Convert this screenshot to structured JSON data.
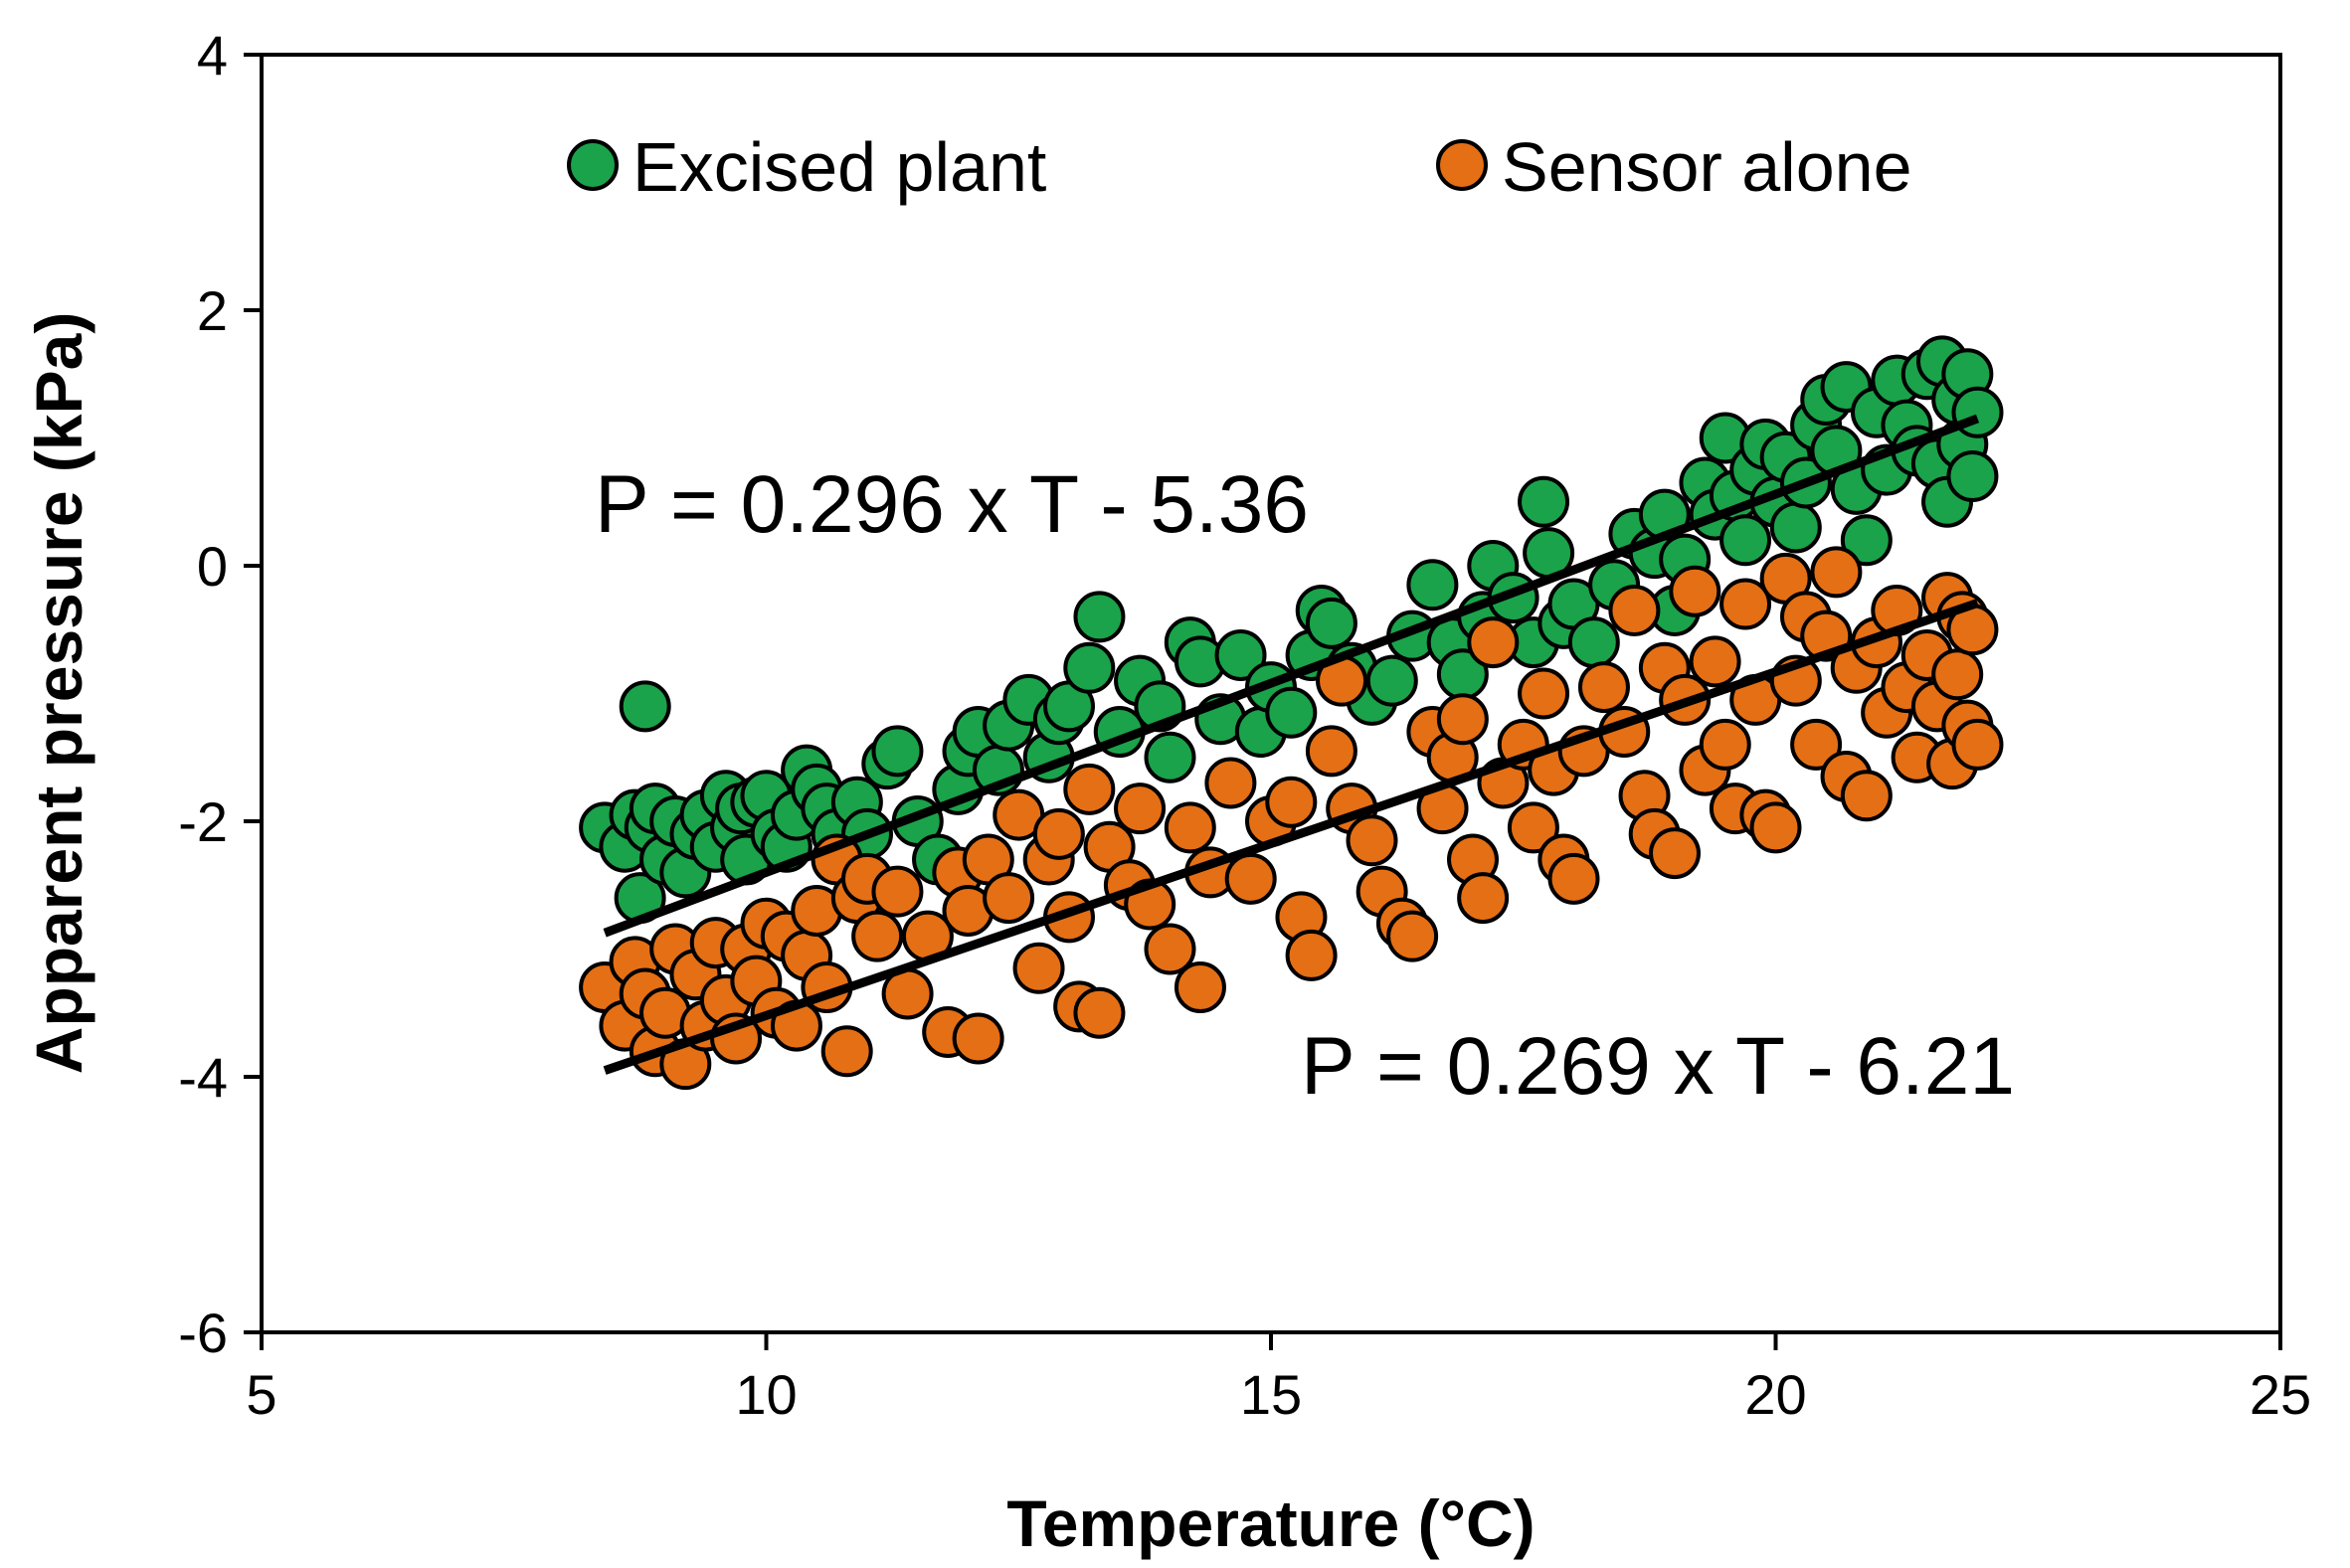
{
  "chart_data": {
    "type": "scatter",
    "title": "",
    "xlabel": "Temperature (°C)",
    "ylabel": "Apparent pressure (kPa)",
    "xlim": [
      5,
      25
    ],
    "ylim": [
      -6,
      4
    ],
    "xticks": [
      5,
      10,
      15,
      20,
      25
    ],
    "yticks": [
      4,
      2,
      0,
      -2,
      -4,
      -6
    ],
    "xtick_labels": [
      "5",
      "10",
      "15",
      "20",
      "25"
    ],
    "ytick_labels": [
      "4",
      "2",
      "0",
      "-2",
      "-4",
      "-6"
    ],
    "grid": false,
    "legend_placement": "top",
    "series": [
      {
        "name": "Excised plant",
        "color": "#1aa34a",
        "fit": {
          "slope": 0.296,
          "intercept": -5.36,
          "x_range": [
            8.4,
            22.0
          ],
          "label": "P = 0.296 x T - 5.36"
        },
        "points": [
          [
            8.4,
            -2.05
          ],
          [
            8.6,
            -2.2
          ],
          [
            8.7,
            -1.95
          ],
          [
            8.75,
            -2.6
          ],
          [
            8.8,
            -1.1
          ],
          [
            8.85,
            -2.05
          ],
          [
            8.9,
            -1.9
          ],
          [
            9.0,
            -2.3
          ],
          [
            9.1,
            -2.0
          ],
          [
            9.2,
            -2.4
          ],
          [
            9.3,
            -2.1
          ],
          [
            9.4,
            -1.95
          ],
          [
            9.5,
            -2.2
          ],
          [
            9.6,
            -1.8
          ],
          [
            9.7,
            -2.05
          ],
          [
            9.75,
            -1.9
          ],
          [
            9.8,
            -2.3
          ],
          [
            9.9,
            -1.85
          ],
          [
            10.0,
            -1.8
          ],
          [
            10.1,
            -2.1
          ],
          [
            10.2,
            -2.2
          ],
          [
            10.3,
            -1.95
          ],
          [
            10.4,
            -1.6
          ],
          [
            10.5,
            -1.75
          ],
          [
            10.6,
            -1.9
          ],
          [
            10.7,
            -2.1
          ],
          [
            10.9,
            -1.85
          ],
          [
            11.0,
            -2.1
          ],
          [
            11.2,
            -1.55
          ],
          [
            11.3,
            -1.45
          ],
          [
            11.5,
            -2.0
          ],
          [
            11.7,
            -2.3
          ],
          [
            11.9,
            -1.75
          ],
          [
            12.0,
            -1.45
          ],
          [
            12.1,
            -1.3
          ],
          [
            12.3,
            -1.6
          ],
          [
            12.4,
            -1.25
          ],
          [
            12.6,
            -1.05
          ],
          [
            12.8,
            -1.5
          ],
          [
            12.9,
            -1.2
          ],
          [
            13.0,
            -1.1
          ],
          [
            13.2,
            -0.8
          ],
          [
            13.3,
            -0.4
          ],
          [
            13.5,
            -1.3
          ],
          [
            13.7,
            -0.9
          ],
          [
            13.9,
            -1.1
          ],
          [
            14.0,
            -1.5
          ],
          [
            14.2,
            -0.6
          ],
          [
            14.3,
            -0.75
          ],
          [
            14.5,
            -1.2
          ],
          [
            14.7,
            -0.7
          ],
          [
            14.9,
            -1.3
          ],
          [
            15.0,
            -0.95
          ],
          [
            15.2,
            -1.15
          ],
          [
            15.4,
            -0.7
          ],
          [
            15.5,
            -0.35
          ],
          [
            15.6,
            -0.45
          ],
          [
            15.8,
            -0.8
          ],
          [
            16.0,
            -1.05
          ],
          [
            16.2,
            -0.9
          ],
          [
            16.4,
            -0.55
          ],
          [
            16.6,
            -0.15
          ],
          [
            16.8,
            -0.6
          ],
          [
            16.9,
            -0.85
          ],
          [
            17.1,
            -0.4
          ],
          [
            17.2,
            0.0
          ],
          [
            17.4,
            -0.25
          ],
          [
            17.6,
            -0.6
          ],
          [
            17.7,
            0.5
          ],
          [
            17.75,
            0.1
          ],
          [
            17.9,
            -0.45
          ],
          [
            18.0,
            -0.3
          ],
          [
            18.2,
            -0.6
          ],
          [
            18.4,
            -0.15
          ],
          [
            18.6,
            0.25
          ],
          [
            18.8,
            0.1
          ],
          [
            18.9,
            0.4
          ],
          [
            19.0,
            -0.35
          ],
          [
            19.1,
            0.05
          ],
          [
            19.3,
            0.65
          ],
          [
            19.4,
            0.4
          ],
          [
            19.5,
            1.0
          ],
          [
            19.6,
            0.55
          ],
          [
            19.7,
            0.2
          ],
          [
            19.8,
            0.75
          ],
          [
            19.9,
            0.95
          ],
          [
            20.0,
            0.5
          ],
          [
            20.1,
            0.85
          ],
          [
            20.2,
            0.3
          ],
          [
            20.3,
            0.65
          ],
          [
            20.4,
            1.1
          ],
          [
            20.5,
            1.3
          ],
          [
            20.6,
            0.9
          ],
          [
            20.7,
            1.4
          ],
          [
            20.8,
            0.6
          ],
          [
            20.9,
            0.2
          ],
          [
            21.0,
            1.2
          ],
          [
            21.1,
            0.75
          ],
          [
            21.2,
            1.45
          ],
          [
            21.3,
            1.1
          ],
          [
            21.4,
            0.9
          ],
          [
            21.5,
            1.5
          ],
          [
            21.6,
            0.8
          ],
          [
            21.65,
            1.6
          ],
          [
            21.7,
            0.5
          ],
          [
            21.8,
            1.3
          ],
          [
            21.85,
            0.95
          ],
          [
            21.9,
            1.5
          ],
          [
            21.95,
            0.7
          ],
          [
            22.0,
            1.2
          ]
        ]
      },
      {
        "name": "Sensor alone",
        "color": "#e56f14",
        "fit": {
          "slope": 0.269,
          "intercept": -6.21,
          "x_range": [
            8.4,
            22.0
          ],
          "label": "P = 0.269 x T - 6.21"
        },
        "points": [
          [
            8.4,
            -3.3
          ],
          [
            8.6,
            -3.6
          ],
          [
            8.7,
            -3.1
          ],
          [
            8.8,
            -3.35
          ],
          [
            8.9,
            -3.8
          ],
          [
            9.0,
            -3.5
          ],
          [
            9.1,
            -3.0
          ],
          [
            9.2,
            -3.9
          ],
          [
            9.3,
            -3.2
          ],
          [
            9.4,
            -3.6
          ],
          [
            9.5,
            -2.95
          ],
          [
            9.6,
            -3.4
          ],
          [
            9.7,
            -3.7
          ],
          [
            9.8,
            -3.0
          ],
          [
            9.9,
            -3.25
          ],
          [
            10.0,
            -2.8
          ],
          [
            10.1,
            -3.5
          ],
          [
            10.2,
            -2.9
          ],
          [
            10.3,
            -3.6
          ],
          [
            10.4,
            -3.05
          ],
          [
            10.5,
            -2.7
          ],
          [
            10.6,
            -3.3
          ],
          [
            10.7,
            -2.3
          ],
          [
            10.8,
            -3.8
          ],
          [
            10.9,
            -2.6
          ],
          [
            11.0,
            -2.45
          ],
          [
            11.1,
            -2.9
          ],
          [
            11.3,
            -2.55
          ],
          [
            11.4,
            -3.35
          ],
          [
            11.6,
            -2.9
          ],
          [
            11.8,
            -3.65
          ],
          [
            11.9,
            -2.4
          ],
          [
            12.0,
            -2.7
          ],
          [
            12.1,
            -3.7
          ],
          [
            12.2,
            -2.3
          ],
          [
            12.4,
            -2.6
          ],
          [
            12.5,
            -1.95
          ],
          [
            12.7,
            -3.15
          ],
          [
            12.8,
            -2.3
          ],
          [
            12.9,
            -2.1
          ],
          [
            13.0,
            -2.75
          ],
          [
            13.1,
            -3.45
          ],
          [
            13.2,
            -1.75
          ],
          [
            13.3,
            -3.5
          ],
          [
            13.4,
            -2.2
          ],
          [
            13.6,
            -2.5
          ],
          [
            13.7,
            -1.9
          ],
          [
            13.8,
            -2.65
          ],
          [
            14.0,
            -3.0
          ],
          [
            14.2,
            -2.05
          ],
          [
            14.3,
            -3.3
          ],
          [
            14.4,
            -2.4
          ],
          [
            14.6,
            -1.7
          ],
          [
            14.8,
            -2.45
          ],
          [
            15.0,
            -2.0
          ],
          [
            15.2,
            -1.85
          ],
          [
            15.3,
            -2.75
          ],
          [
            15.4,
            -3.05
          ],
          [
            15.6,
            -1.45
          ],
          [
            15.7,
            -0.9
          ],
          [
            15.8,
            -1.9
          ],
          [
            16.0,
            -2.15
          ],
          [
            16.1,
            -2.55
          ],
          [
            16.3,
            -2.8
          ],
          [
            16.4,
            -2.9
          ],
          [
            16.6,
            -1.3
          ],
          [
            16.7,
            -1.9
          ],
          [
            16.8,
            -1.5
          ],
          [
            16.9,
            -1.2
          ],
          [
            17.0,
            -2.3
          ],
          [
            17.1,
            -2.6
          ],
          [
            17.2,
            -0.6
          ],
          [
            17.3,
            -1.7
          ],
          [
            17.5,
            -1.4
          ],
          [
            17.6,
            -2.05
          ],
          [
            17.7,
            -1.0
          ],
          [
            17.8,
            -1.6
          ],
          [
            17.9,
            -2.3
          ],
          [
            18.0,
            -2.45
          ],
          [
            18.1,
            -1.45
          ],
          [
            18.3,
            -0.95
          ],
          [
            18.5,
            -1.3
          ],
          [
            18.6,
            -0.35
          ],
          [
            18.7,
            -1.8
          ],
          [
            18.8,
            -2.1
          ],
          [
            18.9,
            -0.8
          ],
          [
            19.0,
            -2.25
          ],
          [
            19.1,
            -1.05
          ],
          [
            19.2,
            -0.2
          ],
          [
            19.3,
            -1.6
          ],
          [
            19.4,
            -0.75
          ],
          [
            19.5,
            -1.4
          ],
          [
            19.6,
            -1.9
          ],
          [
            19.7,
            -0.3
          ],
          [
            19.8,
            -1.05
          ],
          [
            19.9,
            -1.95
          ],
          [
            20.0,
            -2.05
          ],
          [
            20.1,
            -0.1
          ],
          [
            20.2,
            -0.9
          ],
          [
            20.3,
            -0.4
          ],
          [
            20.4,
            -1.4
          ],
          [
            20.5,
            -0.55
          ],
          [
            20.6,
            -0.05
          ],
          [
            20.7,
            -1.65
          ],
          [
            20.8,
            -0.8
          ],
          [
            20.9,
            -1.8
          ],
          [
            21.0,
            -0.6
          ],
          [
            21.1,
            -1.15
          ],
          [
            21.2,
            -0.35
          ],
          [
            21.3,
            -0.95
          ],
          [
            21.4,
            -1.5
          ],
          [
            21.5,
            -0.7
          ],
          [
            21.6,
            -1.1
          ],
          [
            21.7,
            -0.25
          ],
          [
            21.75,
            -1.55
          ],
          [
            21.8,
            -0.85
          ],
          [
            21.85,
            -0.4
          ],
          [
            21.9,
            -1.25
          ],
          [
            21.95,
            -0.5
          ],
          [
            22.0,
            -1.4
          ]
        ]
      }
    ]
  }
}
